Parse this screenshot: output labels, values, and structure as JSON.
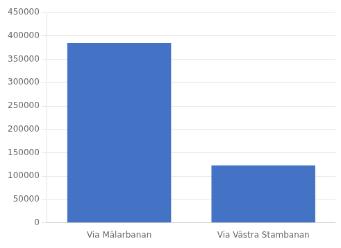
{
  "chart_data": {
    "type": "bar",
    "categories": [
      "Via Mälarbanan",
      "Via Västra Stambanan"
    ],
    "values": [
      385000,
      123000
    ],
    "color": "#4472C4",
    "ylim": [
      0,
      450000
    ],
    "yticks": [
      0,
      50000,
      100000,
      150000,
      200000,
      250000,
      300000,
      350000,
      400000,
      450000
    ],
    "grid": true
  }
}
